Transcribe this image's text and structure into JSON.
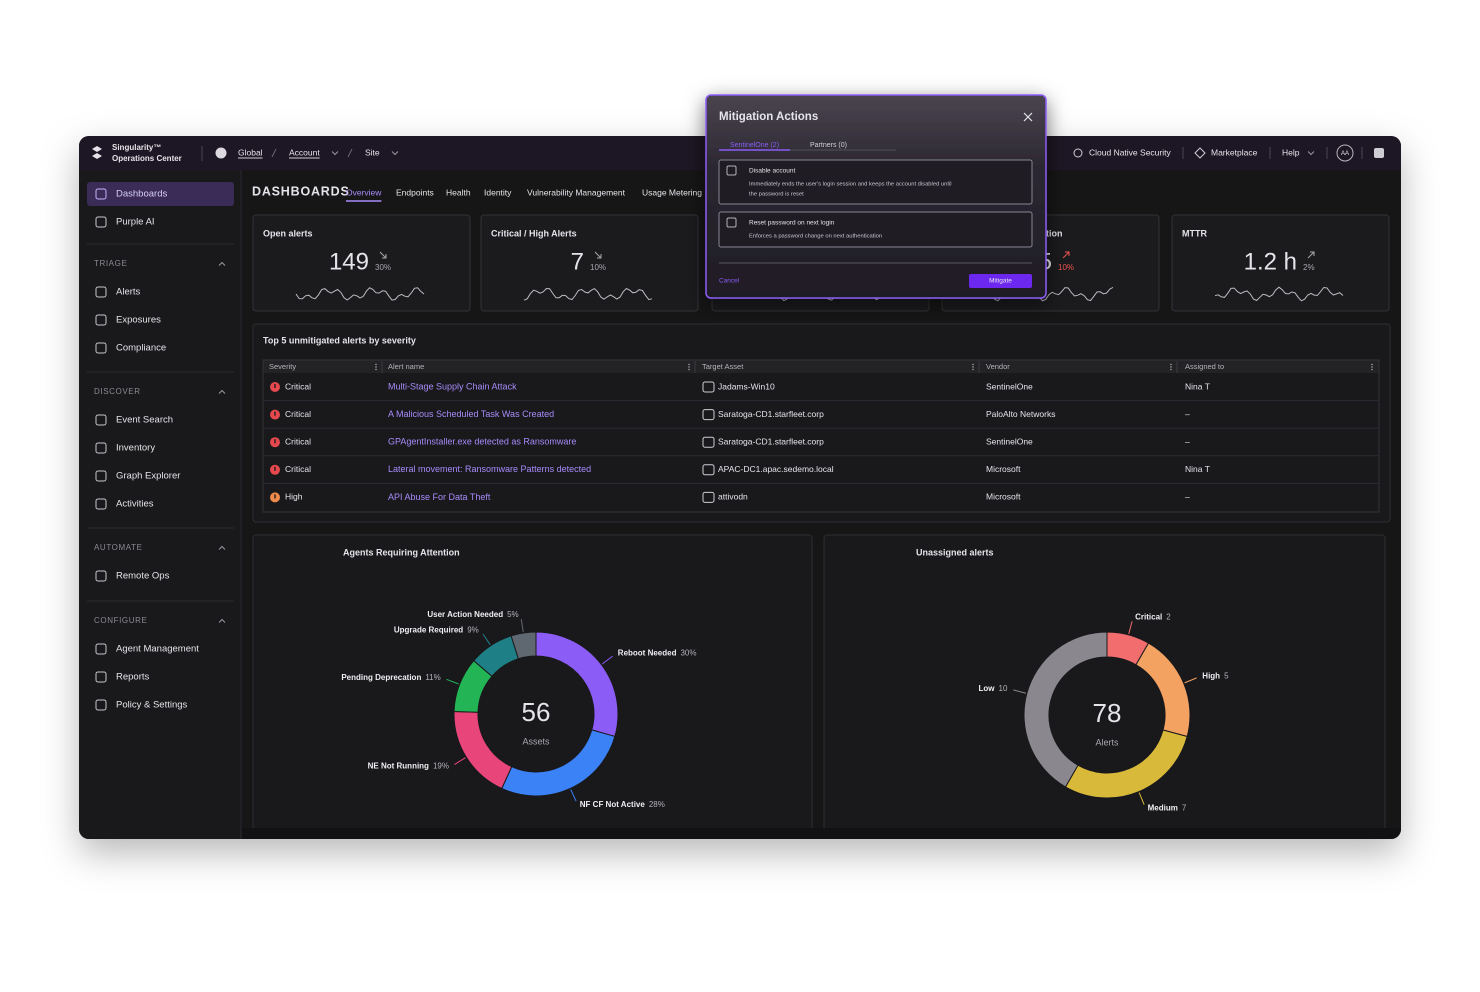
{
  "header": {
    "brand": [
      "Singularity™",
      "Operations Center"
    ],
    "breadcrumbs": [
      "Global",
      "Account",
      "Site"
    ],
    "links": [
      "Cloud Native Security",
      "Marketplace",
      "Help"
    ],
    "avatar": "AA"
  },
  "sidebar": {
    "top": [
      "Dashboards",
      "Purple AI"
    ],
    "sections": [
      {
        "title": "TRIAGE",
        "items": [
          "Alerts",
          "Exposures",
          "Compliance"
        ]
      },
      {
        "title": "DISCOVER",
        "items": [
          "Event Search",
          "Inventory",
          "Graph Explorer",
          "Activities"
        ]
      },
      {
        "title": "AUTOMATE",
        "items": [
          "Remote Ops"
        ]
      },
      {
        "title": "CONFIGURE",
        "items": [
          "Agent Management",
          "Reports",
          "Policy & Settings"
        ]
      }
    ]
  },
  "dashboard": {
    "title": "DASHBOARDS",
    "tabs": [
      "Overview",
      "Endpoints",
      "Health",
      "Identity",
      "Vulnerability Management",
      "Usage Metering"
    ]
  },
  "kpis": [
    {
      "title": "Open alerts",
      "value": 149,
      "change": "30%",
      "trend": "down",
      "change_color": "#a9a7ae"
    },
    {
      "title": "Critical / High Alerts",
      "value": 7,
      "change": "10%",
      "trend": "down",
      "change_color": "#a9a7ae"
    },
    {
      "title": "tion",
      "value": 5,
      "change": "10%",
      "trend": "up",
      "change_color": "#f0544f"
    },
    {
      "title": "MTTR",
      "value": "1.2 h",
      "change": "2%",
      "trend": "up",
      "change_color": "#a9a7ae"
    }
  ],
  "table": {
    "title": "Top 5 unmitigated alerts by severity",
    "columns": [
      "Severity",
      "Alert name",
      "Target Asset",
      "Vendor",
      "Assigned to"
    ],
    "rows": [
      [
        "Critical",
        "Multi-Stage Supply Chain Attack",
        "Jadams-Win10",
        "SentinelOne",
        "Nina T"
      ],
      [
        "Critical",
        "A Malicious Scheduled Task Was Created",
        "Saratoga-CD1.starfleet.corp",
        "PaloAlto Networks",
        "–"
      ],
      [
        "Critical",
        "GPAgentInstaller.exe detected as Ransomware",
        "Saratoga-CD1.starfleet.corp",
        "SentinelOne",
        "–"
      ],
      [
        "Critical",
        "Lateral movement: Ransomware Patterns detected",
        "APAC-DC1.apac.sedemo.local",
        "Microsoft",
        "Nina T"
      ],
      [
        "High",
        "API Abuse For Data Theft",
        "attivodn",
        "Microsoft",
        "–"
      ]
    ],
    "severity_colors": [
      "#e5484d",
      "#e5484d",
      "#e5484d",
      "#e5484d",
      "#f08a4b"
    ]
  },
  "modal": {
    "title": "Mitigation Actions",
    "tabs": [
      "SentinelOne (2)",
      "Partners (0)"
    ],
    "options": [
      {
        "title": "Disable account",
        "description": [
          "Immediately ends the user's login session and keeps the account disabled until",
          "the password is reset"
        ]
      },
      {
        "title": "Reset password on next login",
        "description": [
          "Enforces a password change on next authentication"
        ]
      }
    ],
    "cancel": "Cancel",
    "confirm": "Mitigate"
  },
  "chart_data": [
    {
      "type": "pie",
      "title": "Agents Requiring Attention",
      "center_value": 56,
      "center_label": "Assets",
      "categories": [
        "Reboot Needed",
        "NF CF Not Active",
        "NE Not Running",
        "Pending Deprecation",
        "Upgrade Required",
        "User Action Needed"
      ],
      "values": [
        30,
        28,
        19,
        11,
        9,
        5
      ],
      "value_labels": [
        "30%",
        "28%",
        "19%",
        "11%",
        "9%",
        "5%"
      ],
      "colors": [
        "#8b5cf6",
        "#3b82f6",
        "#e8457a",
        "#22b455",
        "#1f7f86",
        "#5f6870"
      ]
    },
    {
      "type": "pie",
      "title": "Unassigned alerts",
      "center_value": 78,
      "center_label": "Alerts",
      "categories": [
        "Critical",
        "High",
        "Medium",
        "Low"
      ],
      "values": [
        2,
        5,
        7,
        10
      ],
      "colors": [
        "#f26d6d",
        "#f4a261",
        "#d9b93a",
        "#8a888e"
      ]
    }
  ]
}
